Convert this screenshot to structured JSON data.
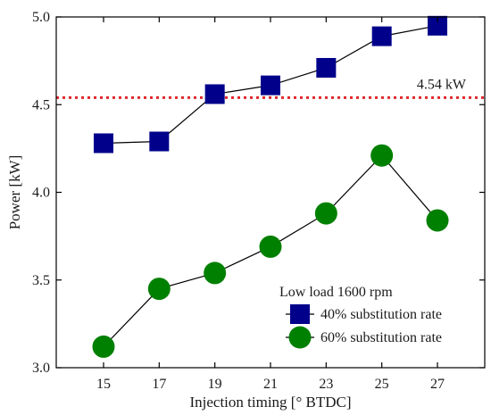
{
  "chart_data": {
    "type": "line",
    "xlabel": "Injection timing [° BTDC]",
    "ylabel": "Power [kW]",
    "x": [
      15,
      17,
      19,
      21,
      23,
      25,
      27
    ],
    "xlim": [
      13.3,
      28.7
    ],
    "ylim": [
      3.0,
      5.0
    ],
    "xticks": [
      "15",
      "17",
      "19",
      "21",
      "23",
      "25",
      "27"
    ],
    "yticks": [
      "3.0",
      "3.5",
      "4.0",
      "4.5",
      "5.0"
    ],
    "legend_title": "Low load 1600 rpm",
    "legend_position": "bottom-right",
    "series": [
      {
        "name": "40% substitution rate",
        "marker": "square",
        "color": "#00008b",
        "values": [
          4.28,
          4.29,
          4.56,
          4.61,
          4.71,
          4.89,
          4.95
        ]
      },
      {
        "name": "60% substitution rate",
        "marker": "circle",
        "color": "#008000",
        "values": [
          3.12,
          3.45,
          3.54,
          3.69,
          3.88,
          4.21,
          3.84
        ]
      }
    ],
    "reference_line": {
      "value": 4.54,
      "label": "4.54 kW",
      "color": "#e0282b",
      "style": "dotted"
    }
  }
}
